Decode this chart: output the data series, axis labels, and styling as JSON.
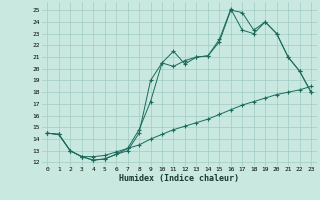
{
  "xlabel": "Humidex (Indice chaleur)",
  "bg_color": "#c8e8e0",
  "line_color": "#1a6b5a",
  "grid_color": "#a0ccc4",
  "xlim": [
    -0.5,
    23.5
  ],
  "ylim": [
    11.7,
    25.7
  ],
  "yticks": [
    12,
    13,
    14,
    15,
    16,
    17,
    18,
    19,
    20,
    21,
    22,
    23,
    24,
    25
  ],
  "xticks": [
    0,
    1,
    2,
    3,
    4,
    5,
    6,
    7,
    8,
    9,
    10,
    11,
    12,
    13,
    14,
    15,
    16,
    17,
    18,
    19,
    20,
    21,
    22,
    23
  ],
  "line1_x": [
    0,
    1,
    2,
    3,
    4,
    5,
    6,
    7,
    8,
    9,
    10,
    11,
    12,
    13,
    14,
    15,
    16,
    17,
    18,
    19,
    20,
    21,
    22,
    23
  ],
  "line1_y": [
    14.5,
    14.4,
    13.0,
    12.5,
    12.2,
    12.3,
    12.7,
    13.0,
    14.5,
    19.0,
    20.5,
    21.5,
    20.4,
    21.0,
    21.1,
    22.3,
    25.0,
    24.8,
    23.3,
    24.0,
    23.0,
    21.0,
    19.8,
    18.0
  ],
  "line2_x": [
    0,
    1,
    2,
    3,
    4,
    5,
    6,
    7,
    8,
    9,
    10,
    11,
    12,
    13,
    14,
    15,
    16,
    17,
    18,
    19,
    20,
    21,
    22,
    23
  ],
  "line2_y": [
    14.5,
    14.4,
    13.0,
    12.5,
    12.2,
    12.3,
    12.7,
    13.2,
    14.8,
    17.2,
    20.5,
    20.2,
    20.7,
    21.0,
    21.1,
    22.5,
    25.1,
    23.3,
    23.0,
    24.0,
    23.0,
    21.0,
    19.8,
    18.0
  ],
  "line3_x": [
    0,
    1,
    2,
    3,
    4,
    5,
    6,
    7,
    8,
    9,
    10,
    11,
    12,
    13,
    14,
    15,
    16,
    17,
    18,
    19,
    20,
    21,
    22,
    23
  ],
  "line3_y": [
    14.5,
    14.4,
    13.0,
    12.5,
    12.5,
    12.6,
    12.9,
    13.2,
    13.5,
    14.0,
    14.4,
    14.8,
    15.1,
    15.4,
    15.7,
    16.1,
    16.5,
    16.9,
    17.2,
    17.5,
    17.8,
    18.0,
    18.2,
    18.5
  ]
}
